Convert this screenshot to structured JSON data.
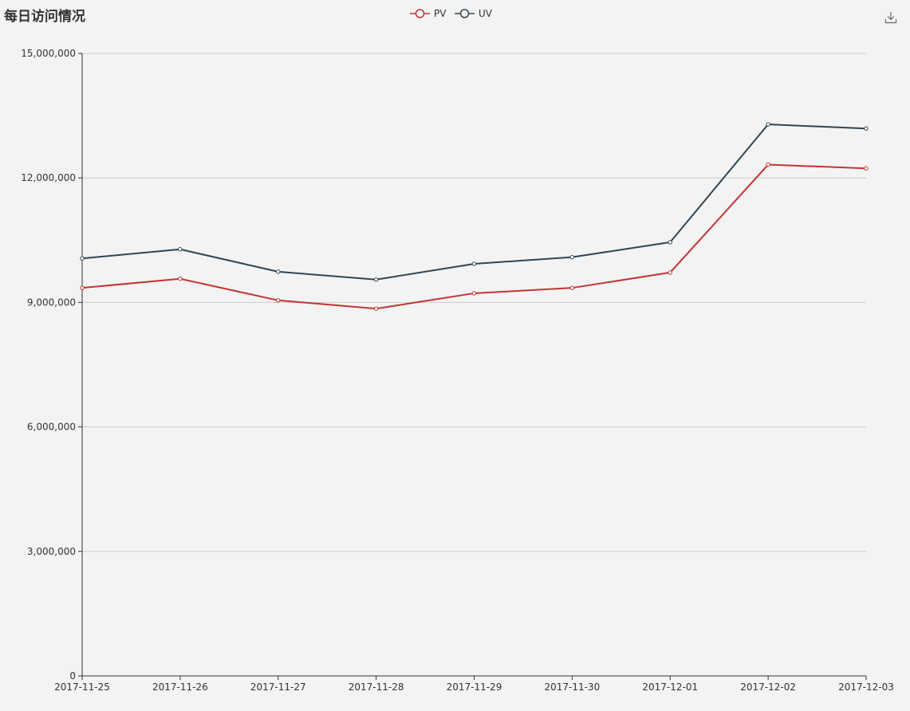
{
  "chart_data": {
    "type": "line",
    "title": "每日访问情况",
    "categories": [
      "2017-11-25",
      "2017-11-26",
      "2017-11-27",
      "2017-11-28",
      "2017-11-29",
      "2017-11-30",
      "2017-12-01",
      "2017-12-02",
      "2017-12-03"
    ],
    "series": [
      {
        "name": "PV",
        "color": "#c23531",
        "values": [
          9350000,
          9570000,
          9050000,
          8850000,
          9220000,
          9350000,
          9720000,
          12320000,
          12230000
        ]
      },
      {
        "name": "UV",
        "color": "#2f4554",
        "values": [
          10060000,
          10280000,
          9740000,
          9550000,
          9930000,
          10090000,
          10450000,
          13290000,
          13190000
        ]
      }
    ],
    "y_ticks": [
      "0",
      "3,000,000",
      "6,000,000",
      "9,000,000",
      "12,000,000",
      "15,000,000"
    ],
    "ylim": [
      0,
      15000000
    ],
    "xlabel": "",
    "ylabel": "",
    "legend_position": "top-center",
    "grid": "horizontal"
  },
  "toolbox": {
    "download_icon": "download-icon"
  }
}
